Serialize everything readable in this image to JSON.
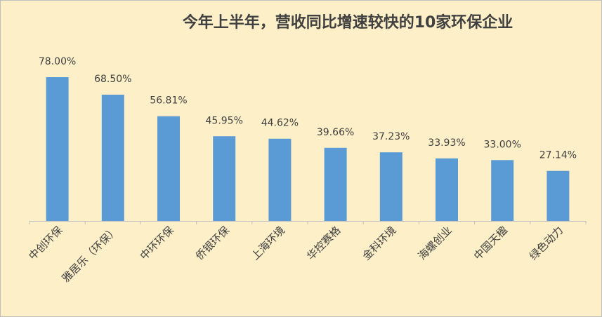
{
  "chart_data": {
    "type": "bar",
    "title": "今年上半年，营收同比增速较快的10家环保企业",
    "categories": [
      "中创环保",
      "雅居乐（环保）",
      "中环环保",
      "侨银环保",
      "上海环境",
      "华控赛格",
      "金科环境",
      "海螺创业",
      "中国天楹",
      "绿色动力"
    ],
    "values": [
      78.0,
      68.5,
      56.81,
      45.95,
      44.62,
      39.66,
      37.23,
      33.93,
      33.0,
      27.14
    ],
    "value_labels": [
      "78.00%",
      "68.50%",
      "56.81%",
      "45.95%",
      "44.62%",
      "39.66%",
      "37.23%",
      "33.93%",
      "33.00%",
      "27.14%"
    ],
    "color": "#5b9bd5",
    "ylim": [
      0,
      90
    ]
  }
}
